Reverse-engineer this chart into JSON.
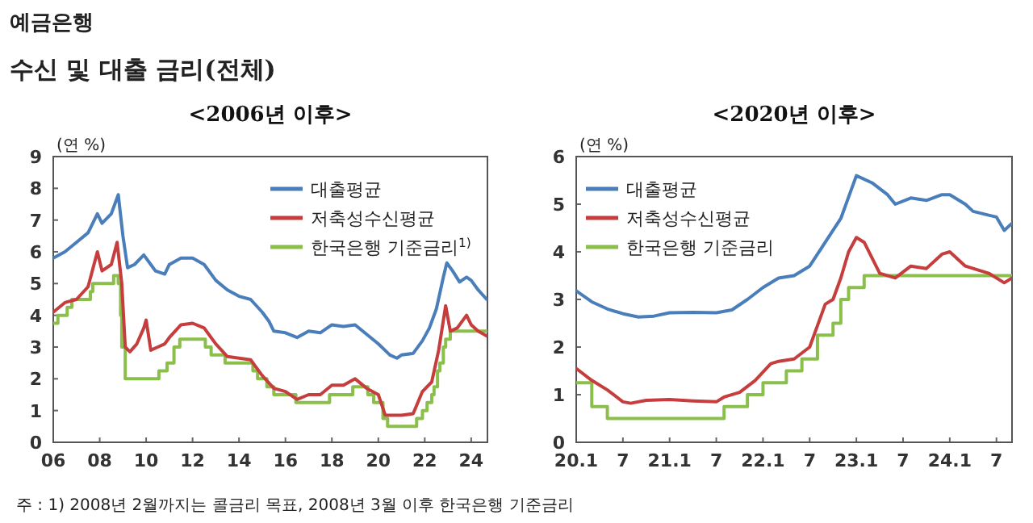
{
  "chart_data": [
    {
      "type": "line",
      "title": "<2006년 이후>",
      "ylabel": "(연 %)",
      "annotations": [
        "예금은행",
        "수신 및 대출 금리(전체)",
        "주 : 1) 2008년 2월까지는 콜금리 목표, 2008년 3월 이후 한국은행 기준금리"
      ],
      "xlim": [
        2006,
        2024.7
      ],
      "ylim": [
        0,
        9
      ],
      "xticks": [
        {
          "value": 2006,
          "label": "06"
        },
        {
          "value": 2008,
          "label": "08"
        },
        {
          "value": 2010,
          "label": "10"
        },
        {
          "value": 2012,
          "label": "12"
        },
        {
          "value": 2014,
          "label": "14"
        },
        {
          "value": 2016,
          "label": "16"
        },
        {
          "value": 2018,
          "label": "18"
        },
        {
          "value": 2020,
          "label": "20"
        },
        {
          "value": 2022,
          "label": "22"
        },
        {
          "value": 2024,
          "label": "24"
        }
      ],
      "yticks": [
        0,
        1,
        2,
        3,
        4,
        5,
        6,
        7,
        8,
        9
      ],
      "grid": false,
      "legend": "top right",
      "series": [
        {
          "name": "대출평균",
          "color": "#4a7ebb",
          "x": [
            2006.0,
            2006.5,
            2007.0,
            2007.5,
            2007.9,
            2008.1,
            2008.5,
            2008.8,
            2009.0,
            2009.2,
            2009.5,
            2009.9,
            2010.2,
            2010.4,
            2010.8,
            2011.0,
            2011.5,
            2012.0,
            2012.5,
            2013.0,
            2013.5,
            2014.0,
            2014.5,
            2015.0,
            2015.3,
            2015.5,
            2016.0,
            2016.5,
            2017.0,
            2017.5,
            2018.0,
            2018.5,
            2019.0,
            2019.5,
            2020.0,
            2020.5,
            2020.8,
            2021.0,
            2021.5,
            2021.9,
            2022.2,
            2022.5,
            2022.8,
            2022.95,
            2023.2,
            2023.5,
            2023.8,
            2024.0,
            2024.3,
            2024.67
          ],
          "values": [
            5.8,
            6.0,
            6.3,
            6.6,
            7.2,
            6.9,
            7.2,
            7.8,
            6.5,
            5.5,
            5.6,
            5.9,
            5.6,
            5.4,
            5.3,
            5.6,
            5.8,
            5.8,
            5.6,
            5.1,
            4.8,
            4.6,
            4.5,
            4.1,
            3.8,
            3.5,
            3.45,
            3.3,
            3.5,
            3.45,
            3.7,
            3.65,
            3.7,
            3.4,
            3.1,
            2.75,
            2.65,
            2.75,
            2.8,
            3.2,
            3.6,
            4.2,
            5.2,
            5.65,
            5.4,
            5.05,
            5.2,
            5.1,
            4.8,
            4.5
          ]
        },
        {
          "name": "저축성수신평균",
          "color": "#c63d3d",
          "x": [
            2006.0,
            2006.5,
            2007.0,
            2007.5,
            2007.9,
            2008.1,
            2008.5,
            2008.75,
            2008.95,
            2009.1,
            2009.3,
            2009.6,
            2009.9,
            2010.0,
            2010.2,
            2010.5,
            2010.8,
            2011.0,
            2011.5,
            2012.0,
            2012.5,
            2013.0,
            2013.5,
            2014.0,
            2014.5,
            2015.0,
            2015.5,
            2016.0,
            2016.5,
            2017.0,
            2017.5,
            2018.0,
            2018.5,
            2019.0,
            2019.5,
            2020.0,
            2020.3,
            2020.6,
            2021.0,
            2021.5,
            2021.9,
            2022.3,
            2022.6,
            2022.9,
            2023.1,
            2023.4,
            2023.8,
            2024.0,
            2024.3,
            2024.67
          ],
          "values": [
            4.1,
            4.4,
            4.5,
            4.9,
            6.0,
            5.4,
            5.6,
            6.3,
            5.0,
            3.0,
            2.85,
            3.1,
            3.6,
            3.85,
            2.9,
            3.0,
            3.1,
            3.3,
            3.7,
            3.75,
            3.6,
            3.1,
            2.7,
            2.65,
            2.6,
            2.1,
            1.7,
            1.6,
            1.35,
            1.5,
            1.5,
            1.8,
            1.8,
            2.0,
            1.7,
            1.5,
            0.85,
            0.85,
            0.85,
            0.9,
            1.6,
            1.9,
            2.9,
            4.3,
            3.5,
            3.6,
            4.0,
            3.7,
            3.5,
            3.35
          ]
        },
        {
          "name": "한국은행 기준금리$^{1)}$",
          "type": "step",
          "color": "#8bbf4b",
          "x": [
            2006.0,
            2006.2,
            2006.6,
            2006.8,
            2007.6,
            2007.7,
            2008.6,
            2008.8,
            2008.9,
            2008.95,
            2009.1,
            2010.55,
            2010.9,
            2011.2,
            2011.45,
            2012.55,
            2012.8,
            2013.4,
            2014.6,
            2014.8,
            2015.2,
            2015.5,
            2016.45,
            2017.9,
            2018.9,
            2019.55,
            2019.8,
            2020.2,
            2020.4,
            2021.65,
            2021.9,
            2022.1,
            2022.3,
            2022.4,
            2022.55,
            2022.65,
            2022.8,
            2022.9,
            2023.1,
            2024.67
          ],
          "values": [
            3.75,
            4.0,
            4.25,
            4.5,
            4.75,
            5.0,
            5.25,
            5.0,
            4.0,
            3.0,
            2.0,
            2.25,
            2.5,
            3.0,
            3.25,
            3.0,
            2.75,
            2.5,
            2.25,
            2.0,
            1.75,
            1.5,
            1.25,
            1.5,
            1.75,
            1.5,
            1.25,
            0.75,
            0.5,
            0.75,
            1.0,
            1.25,
            1.5,
            1.75,
            2.25,
            2.5,
            3.0,
            3.25,
            3.5,
            3.5
          ]
        }
      ]
    },
    {
      "type": "line",
      "title": "<2020년 이후>",
      "ylabel": "(연 %)",
      "xlim": [
        "2020-01",
        "2024-09"
      ],
      "ylim": [
        0,
        6
      ],
      "xticks": [
        {
          "value": "2020-01",
          "label": "20.1"
        },
        {
          "value": "2020-07",
          "label": "7"
        },
        {
          "value": "2021-01",
          "label": "21.1"
        },
        {
          "value": "2021-07",
          "label": "7"
        },
        {
          "value": "2022-01",
          "label": "22.1"
        },
        {
          "value": "2022-07",
          "label": "7"
        },
        {
          "value": "2023-01",
          "label": "23.1"
        },
        {
          "value": "2023-07",
          "label": "7"
        },
        {
          "value": "2024-01",
          "label": "24.1"
        },
        {
          "value": "2024-07",
          "label": "7"
        }
      ],
      "yticks": [
        0,
        1,
        2,
        3,
        4,
        5,
        6
      ],
      "grid": false,
      "legend": "top left",
      "series": [
        {
          "name": "대출평균",
          "color": "#4a7ebb",
          "x": [
            "2020-01",
            "2020-03",
            "2020-05",
            "2020-07",
            "2020-09",
            "2020-11",
            "2021-01",
            "2021-04",
            "2021-07",
            "2021-09",
            "2021-11",
            "2022-01",
            "2022-03",
            "2022-05",
            "2022-07",
            "2022-09",
            "2022-11",
            "2023-01",
            "2023-03",
            "2023-05",
            "2023-06",
            "2023-08",
            "2023-10",
            "2023-12",
            "2024-01",
            "2024-03",
            "2024-04",
            "2024-06",
            "2024-07",
            "2024-08",
            "2024-09"
          ],
          "values": [
            3.18,
            2.95,
            2.8,
            2.7,
            2.63,
            2.65,
            2.72,
            2.73,
            2.72,
            2.78,
            3.0,
            3.25,
            3.45,
            3.5,
            3.7,
            4.2,
            4.7,
            5.6,
            5.45,
            5.2,
            5.0,
            5.13,
            5.08,
            5.2,
            5.2,
            5.0,
            4.85,
            4.77,
            4.73,
            4.45,
            4.6
          ]
        },
        {
          "name": "저축성수신평균",
          "color": "#c63d3d",
          "x": [
            "2020-01",
            "2020-03",
            "2020-05",
            "2020-07",
            "2020-08",
            "2020-10",
            "2021-01",
            "2021-04",
            "2021-07",
            "2021-08",
            "2021-10",
            "2021-12",
            "2022-02",
            "2022-03",
            "2022-05",
            "2022-07",
            "2022-09",
            "2022-10",
            "2022-11",
            "2022-12",
            "2023-01",
            "2023-02",
            "2023-04",
            "2023-06",
            "2023-08",
            "2023-10",
            "2023-12",
            "2024-01",
            "2024-03",
            "2024-06",
            "2024-08",
            "2024-09"
          ],
          "values": [
            1.55,
            1.3,
            1.1,
            0.85,
            0.82,
            0.88,
            0.9,
            0.87,
            0.85,
            0.95,
            1.05,
            1.3,
            1.65,
            1.7,
            1.75,
            2.0,
            2.9,
            3.0,
            3.45,
            4.0,
            4.3,
            4.2,
            3.55,
            3.45,
            3.7,
            3.65,
            3.95,
            4.0,
            3.7,
            3.55,
            3.35,
            3.45
          ]
        },
        {
          "name": "한국은행 기준금리",
          "type": "step",
          "color": "#8bbf4b",
          "x": [
            "2020-01",
            "2020-03",
            "2020-05",
            "2021-08",
            "2021-11",
            "2022-01",
            "2022-04",
            "2022-06",
            "2022-08",
            "2022-10",
            "2022-11",
            "2022-12",
            "2023-02",
            "2024-09"
          ],
          "values": [
            1.25,
            0.75,
            0.5,
            0.75,
            1.0,
            1.25,
            1.5,
            1.75,
            2.25,
            2.5,
            3.0,
            3.25,
            3.5,
            3.5
          ]
        }
      ]
    }
  ]
}
